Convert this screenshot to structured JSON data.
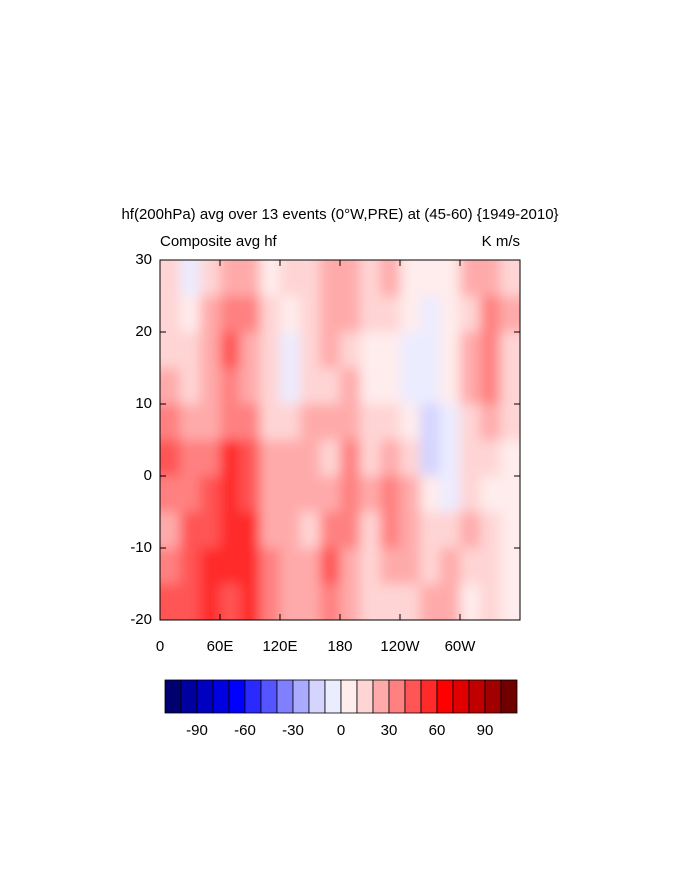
{
  "chart_data": {
    "type": "contour",
    "title": "hf(200hPa) avg over 13 events (0°W,PRE) at (45-60) {1949-2010}",
    "left_label": "Composite avg hf",
    "right_label": "K m/s",
    "x": [
      10,
      30,
      50,
      70,
      90,
      110,
      130,
      150,
      170,
      190,
      210,
      230,
      250,
      270,
      290,
      310,
      330,
      350
    ],
    "y": [
      27.5,
      22.5,
      17.5,
      12.5,
      7.5,
      2.5,
      -2.5,
      -7.5,
      -12.5,
      -17.5
    ],
    "z": [
      [
        10,
        -5,
        15,
        20,
        20,
        5,
        10,
        15,
        20,
        25,
        10,
        25,
        5,
        0,
        5,
        25,
        20,
        15
      ],
      [
        15,
        5,
        20,
        35,
        30,
        15,
        5,
        15,
        25,
        20,
        10,
        15,
        0,
        -5,
        5,
        15,
        30,
        20
      ],
      [
        15,
        15,
        20,
        40,
        25,
        10,
        -5,
        10,
        20,
        15,
        5,
        5,
        -5,
        -10,
        5,
        20,
        35,
        15
      ],
      [
        20,
        15,
        20,
        30,
        25,
        15,
        -5,
        10,
        15,
        20,
        5,
        5,
        -5,
        -10,
        5,
        25,
        30,
        15
      ],
      [
        35,
        25,
        25,
        30,
        35,
        15,
        10,
        20,
        25,
        20,
        10,
        15,
        0,
        -15,
        -5,
        15,
        20,
        10
      ],
      [
        40,
        30,
        35,
        50,
        45,
        20,
        20,
        20,
        15,
        35,
        15,
        20,
        15,
        -15,
        -5,
        10,
        10,
        5
      ],
      [
        30,
        35,
        40,
        55,
        45,
        20,
        25,
        20,
        20,
        30,
        20,
        30,
        20,
        5,
        -10,
        15,
        5,
        5
      ],
      [
        25,
        40,
        45,
        55,
        50,
        25,
        25,
        15,
        35,
        30,
        10,
        35,
        25,
        15,
        10,
        20,
        10,
        5
      ],
      [
        35,
        45,
        50,
        50,
        50,
        30,
        25,
        20,
        40,
        25,
        10,
        25,
        25,
        15,
        20,
        15,
        10,
        5
      ],
      [
        40,
        45,
        50,
        45,
        55,
        35,
        25,
        25,
        35,
        25,
        10,
        15,
        10,
        20,
        25,
        5,
        10,
        5
      ]
    ],
    "xlim": [
      0,
      360
    ],
    "ylim": [
      -20,
      30
    ],
    "xticks": [
      0,
      {
        "value": 60,
        "label": "60E"
      },
      {
        "value": 120,
        "label": "120E"
      },
      180,
      {
        "value": 240,
        "label": "120W"
      },
      {
        "value": 300,
        "label": "60W"
      }
    ],
    "yticks": [
      -20,
      -10,
      0,
      10,
      20,
      30
    ],
    "levels": [
      -100,
      -90,
      -80,
      -70,
      -60,
      -50,
      -40,
      -30,
      -20,
      -10,
      0,
      10,
      20,
      30,
      40,
      50,
      60,
      70,
      80,
      90,
      100
    ],
    "colors": [
      "#000070",
      "#0000a0",
      "#0000c0",
      "#0000e0",
      "#0000ff",
      "#2a2aff",
      "#5555ff",
      "#8080ff",
      "#aaaaff",
      "#d4d4ff",
      "#ececff",
      "#ffecec",
      "#ffd4d4",
      "#ffaaaa",
      "#ff8080",
      "#ff5555",
      "#ff2a2a",
      "#ff0000",
      "#e00000",
      "#c00000",
      "#a00000",
      "#700000"
    ],
    "colorbar_ticks": [
      -90,
      -60,
      -30,
      0,
      30,
      60,
      90
    ]
  }
}
